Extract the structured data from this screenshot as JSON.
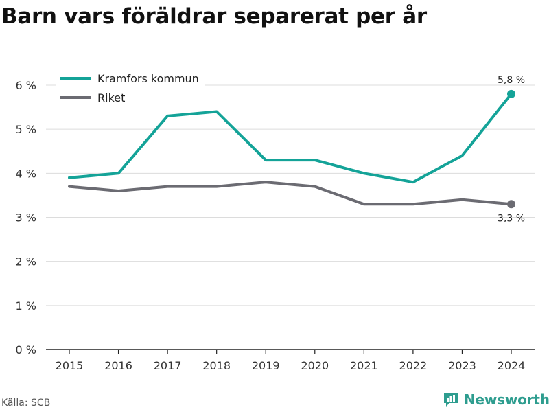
{
  "header": {
    "title": "Barn vars föräldrar separerat per år"
  },
  "footer": {
    "source": "Källa: SCB",
    "brand": "Newsworthy"
  },
  "colors": {
    "kramfors": "#14a398",
    "riket": "#6b6b72",
    "grid": "#dcdcdc",
    "brand": "#2e9d8f"
  },
  "icons": {
    "brand": "bar-chart-icon"
  },
  "chart_data": {
    "type": "line",
    "title": "Barn vars föräldrar separerat per år",
    "x": [
      "2015",
      "2016",
      "2017",
      "2018",
      "2019",
      "2020",
      "2021",
      "2022",
      "2023",
      "2024"
    ],
    "ylim": [
      0,
      6
    ],
    "yticks": [
      0,
      1,
      2,
      3,
      4,
      5,
      6
    ],
    "ytick_labels": [
      "0 %",
      "1 %",
      "2 %",
      "3 %",
      "4 %",
      "5 %",
      "6 %"
    ],
    "grid": true,
    "legend": "top-left",
    "series": [
      {
        "name": "Kramfors kommun",
        "color": "#14a398",
        "values": [
          3.9,
          4.0,
          5.3,
          5.4,
          4.3,
          4.3,
          4.0,
          3.8,
          4.4,
          5.8
        ],
        "end_label": "5,8 %"
      },
      {
        "name": "Riket",
        "color": "#6b6b72",
        "values": [
          3.7,
          3.6,
          3.7,
          3.7,
          3.8,
          3.7,
          3.3,
          3.3,
          3.4,
          3.3
        ],
        "end_label": "3,3 %"
      }
    ]
  }
}
